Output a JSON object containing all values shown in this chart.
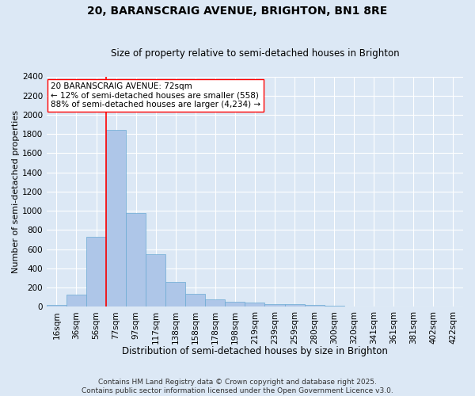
{
  "title1": "20, BARANSCRAIG AVENUE, BRIGHTON, BN1 8RE",
  "title2": "Size of property relative to semi-detached houses in Brighton",
  "xlabel": "Distribution of semi-detached houses by size in Brighton",
  "ylabel": "Number of semi-detached properties",
  "categories": [
    "16sqm",
    "36sqm",
    "56sqm",
    "77sqm",
    "97sqm",
    "117sqm",
    "138sqm",
    "158sqm",
    "178sqm",
    "198sqm",
    "219sqm",
    "239sqm",
    "259sqm",
    "280sqm",
    "300sqm",
    "320sqm",
    "341sqm",
    "361sqm",
    "381sqm",
    "402sqm",
    "422sqm"
  ],
  "values": [
    15,
    125,
    730,
    1840,
    980,
    550,
    255,
    135,
    75,
    55,
    40,
    30,
    25,
    20,
    10,
    5,
    2,
    1,
    0,
    0,
    0
  ],
  "bar_color": "#aec6e8",
  "bar_edge_color": "#6aaad4",
  "background_color": "#dce8f5",
  "grid_color": "#ffffff",
  "vline_color": "red",
  "vline_x": 2.5,
  "annotation_text": "20 BARANSCRAIG AVENUE: 72sqm\n← 12% of semi-detached houses are smaller (558)\n88% of semi-detached houses are larger (4,234) →",
  "annotation_box_color": "white",
  "annotation_box_edge": "red",
  "ylim": [
    0,
    2400
  ],
  "yticks": [
    0,
    200,
    400,
    600,
    800,
    1000,
    1200,
    1400,
    1600,
    1800,
    2000,
    2200,
    2400
  ],
  "footer": "Contains HM Land Registry data © Crown copyright and database right 2025.\nContains public sector information licensed under the Open Government Licence v3.0.",
  "title1_fontsize": 10,
  "title2_fontsize": 8.5,
  "xlabel_fontsize": 8.5,
  "ylabel_fontsize": 8,
  "tick_fontsize": 7.5,
  "annotation_fontsize": 7.5,
  "footer_fontsize": 6.5
}
